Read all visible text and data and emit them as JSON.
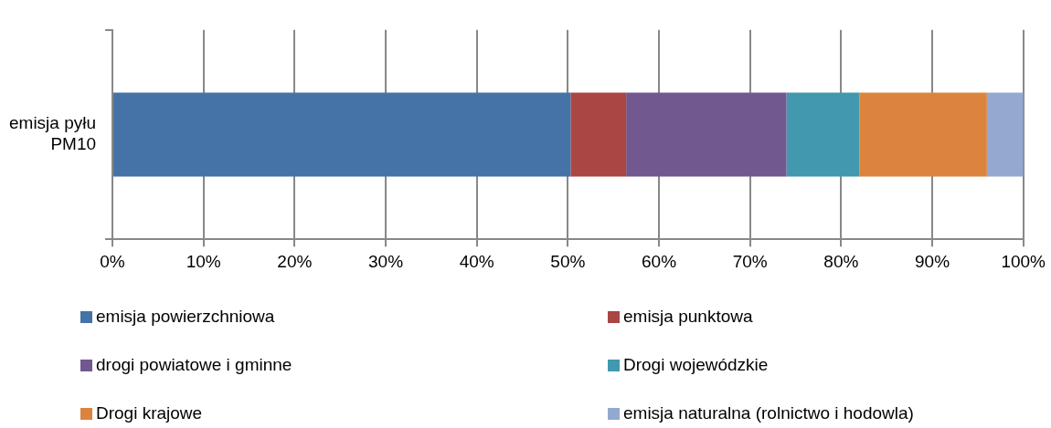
{
  "chart_data": {
    "type": "bar",
    "orientation": "horizontal",
    "stacked": true,
    "categories": [
      "emisja pyłu PM10"
    ],
    "series": [
      {
        "name": "emisja powierzchniowa",
        "color": "#4572a7",
        "values": [
          50.3
        ]
      },
      {
        "name": "emisja punktowa",
        "color": "#aa4643",
        "values": [
          6.1
        ]
      },
      {
        "name": "drogi powiatowe i gminne",
        "color": "#71588f",
        "values": [
          17.6
        ]
      },
      {
        "name": "Drogi wojewódzkie",
        "color": "#4198af",
        "values": [
          8.0
        ]
      },
      {
        "name": "Drogi krajowe",
        "color": "#db843d",
        "values": [
          14.0
        ]
      },
      {
        "name": "emisja naturalna (rolnictwo i hodowla)",
        "color": "#93a9cf",
        "values": [
          4.0
        ]
      }
    ],
    "xlim": [
      0,
      100
    ],
    "xticks": [
      {
        "value": 0,
        "label": "0%"
      },
      {
        "value": 10,
        "label": "10%"
      },
      {
        "value": 20,
        "label": "20%"
      },
      {
        "value": 30,
        "label": "30%"
      },
      {
        "value": 40,
        "label": "40%"
      },
      {
        "value": 50,
        "label": "50%"
      },
      {
        "value": 60,
        "label": "60%"
      },
      {
        "value": 70,
        "label": "70%"
      },
      {
        "value": 80,
        "label": "80%"
      },
      {
        "value": 90,
        "label": "90%"
      },
      {
        "value": 100,
        "label": "100%"
      }
    ],
    "grid": "x",
    "legend": "bottom"
  }
}
